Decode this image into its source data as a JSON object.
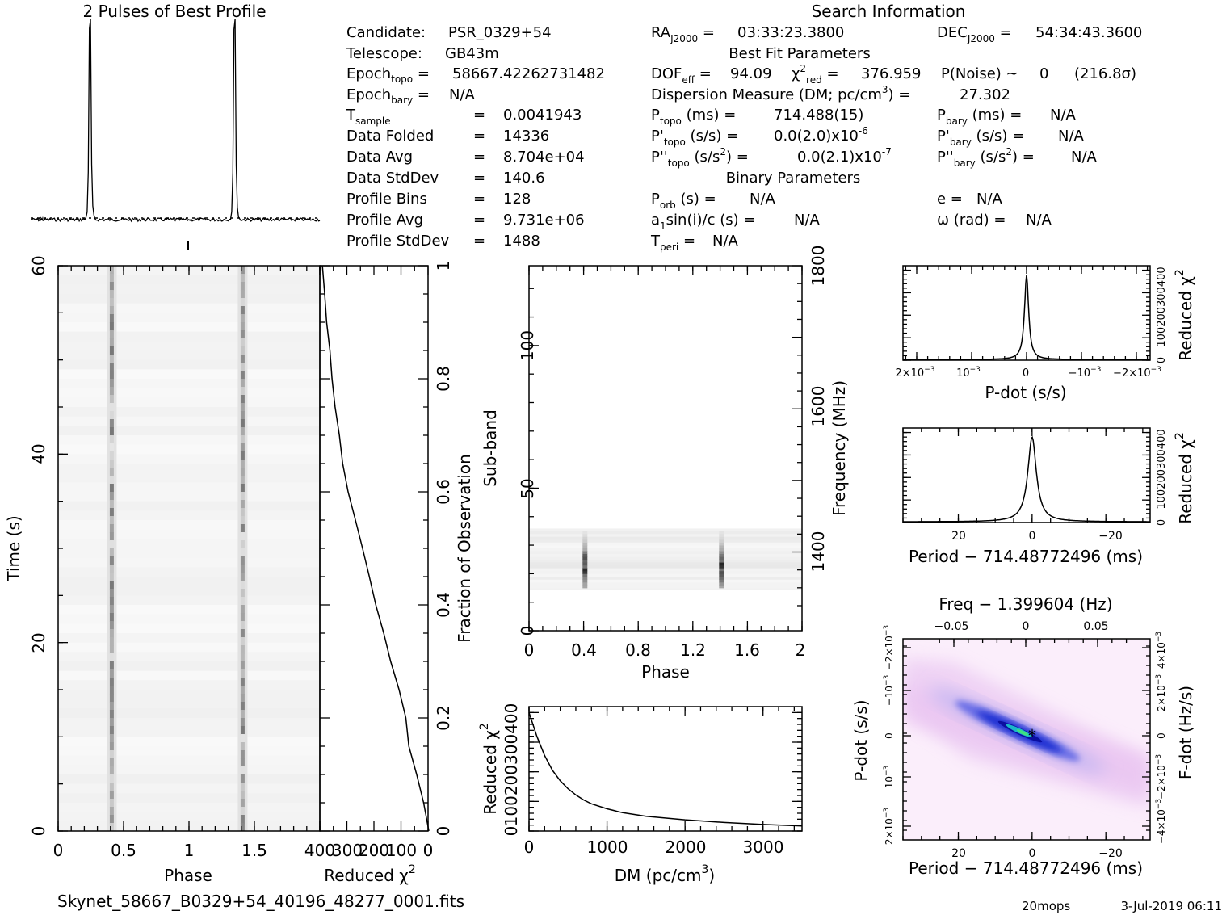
{
  "title_profile": "2 Pulses of Best Profile",
  "title_search": "Search Information",
  "info": {
    "candidate": "PSR_0329+54",
    "telescope": "GB43m",
    "epoch_topo": "58667.42262731482",
    "epoch_bary": "N/A",
    "t_sample": "0.0041943",
    "data_folded": "14336",
    "data_avg": "8.704e+04",
    "data_stddev": "140.6",
    "profile_bins": "128",
    "profile_avg": "9.731e+06",
    "profile_stddev": "1488",
    "ra": "03:33:23.3800",
    "dec": "54:34:43.3600",
    "best_fit_title": "Best Fit Parameters",
    "dof_eff": "94.09",
    "chi2_red": "376.959",
    "p_noise": "0",
    "sigma": "(216.8σ)",
    "dm": "27.302",
    "p_topo": "714.488(15)",
    "p_bary": "N/A",
    "pdot_topo": "0.0(2.0)",
    "pdot_topo_exp": "-6",
    "pdot_bary": "N/A",
    "pddot_topo": "0.0(2.1)",
    "pddot_topo_exp": "-7",
    "pddot_bary": "N/A",
    "binary_title": "Binary Parameters",
    "p_orb": "N/A",
    "a1sini": "N/A",
    "t_peri": "N/A",
    "e": "N/A",
    "omega": "N/A"
  },
  "footer": {
    "filename": "Skynet_58667_B0329+54_40196_48277_0001.fits",
    "user": "20mops",
    "date": "3-Jul-2019 06:11"
  },
  "chart_data": [
    {
      "id": "profile",
      "type": "line",
      "title": "2 Pulses of Best Profile",
      "x_range": [
        0,
        2
      ],
      "peaks": [
        0.41,
        1.41
      ],
      "note": "pulse profile repeated twice, sharp peak near phase 0.41"
    },
    {
      "id": "time_phase",
      "type": "heatmap",
      "xlabel": "Phase",
      "ylabel": "Time (s)",
      "x_ticks": [
        "0",
        "0.5",
        "1",
        "1.5"
      ],
      "y_ticks": [
        "0",
        "20",
        "40",
        "60"
      ],
      "xlim": [
        0,
        2
      ],
      "ylim": [
        0,
        60
      ],
      "pulse_phase": [
        0.41,
        1.41
      ]
    },
    {
      "id": "chi2_vs_time",
      "type": "line",
      "xlabel": "Reduced χ",
      "x_ticks": [
        "400",
        "300",
        "200",
        "100",
        "0"
      ],
      "xlim": [
        400,
        0
      ],
      "right_label": "Fraction of Observation",
      "right_ticks": [
        "0.2",
        "0.4",
        "0.6",
        "0.8",
        "1"
      ],
      "points": [
        [
          0,
          0.0
        ],
        [
          15,
          0.05
        ],
        [
          40,
          0.1
        ],
        [
          70,
          0.15
        ],
        [
          85,
          0.2
        ],
        [
          110,
          0.25
        ],
        [
          140,
          0.3
        ],
        [
          165,
          0.35
        ],
        [
          190,
          0.4
        ],
        [
          220,
          0.45
        ],
        [
          245,
          0.5
        ],
        [
          270,
          0.55
        ],
        [
          295,
          0.6
        ],
        [
          315,
          0.65
        ],
        [
          330,
          0.7
        ],
        [
          345,
          0.75
        ],
        [
          355,
          0.8
        ],
        [
          365,
          0.85
        ],
        [
          375,
          0.9
        ],
        [
          385,
          0.95
        ],
        [
          390,
          1.0
        ]
      ]
    },
    {
      "id": "subband_phase",
      "type": "heatmap",
      "xlabel": "Phase",
      "ylabel": "Sub-band",
      "right_label": "Frequency (MHz)",
      "x_ticks": [
        "0",
        "0.4",
        "0.8",
        "1.2",
        "1.6",
        "2"
      ],
      "y_ticks": [
        "0",
        "50",
        "100"
      ],
      "right_ticks": [
        "1400",
        "1600",
        "1800"
      ],
      "xlim": [
        0,
        2
      ],
      "ylim": [
        0,
        128
      ],
      "active_subbands": [
        15,
        35
      ],
      "pulse_phase": [
        0.41,
        1.41
      ]
    },
    {
      "id": "chi2_vs_dm",
      "type": "line",
      "xlabel": "DM (pc/cm",
      "ylabel": "Reduced χ",
      "x_ticks": [
        "0",
        "1000",
        "2000",
        "3000"
      ],
      "y_ticks": [
        "0",
        "100",
        "200",
        "300",
        "400"
      ],
      "xlim": [
        0,
        3500
      ],
      "ylim": [
        0,
        420
      ],
      "points": [
        [
          0,
          400
        ],
        [
          100,
          320
        ],
        [
          200,
          255
        ],
        [
          300,
          205
        ],
        [
          400,
          170
        ],
        [
          500,
          143
        ],
        [
          600,
          122
        ],
        [
          700,
          105
        ],
        [
          800,
          92
        ],
        [
          1000,
          75
        ],
        [
          1200,
          62
        ],
        [
          1500,
          50
        ],
        [
          2000,
          38
        ],
        [
          2500,
          29
        ],
        [
          3000,
          22
        ],
        [
          3500,
          17
        ]
      ]
    },
    {
      "id": "chi2_vs_pdot",
      "type": "line",
      "xlabel": "P-dot (s/s)",
      "ylabel": "Reduced χ",
      "x_ticks": [
        "2×10",
        "10",
        "0",
        "−10",
        "−2×10"
      ],
      "y_ticks": [
        "0",
        "100",
        "200",
        "300",
        "400"
      ],
      "xlim": [
        0.00225,
        -0.00225
      ],
      "ylim": [
        0,
        420
      ],
      "peak": [
        0,
        376.959
      ]
    },
    {
      "id": "chi2_vs_period",
      "type": "line",
      "xlabel": "Period − 714.48772496 (ms)",
      "ylabel": "Reduced χ",
      "x_ticks": [
        "20",
        "0",
        "−20"
      ],
      "y_ticks": [
        "0",
        "100",
        "200",
        "300",
        "400"
      ],
      "xlim": [
        35,
        -32
      ],
      "ylim": [
        0,
        420
      ],
      "peak": [
        0,
        376.959
      ]
    },
    {
      "id": "ppdot_plane",
      "type": "heatmap",
      "title": "Freq − 1.399604 (Hz)",
      "xlabel": "Period − 714.48772496 (ms)",
      "ylabel": "P-dot (s/s)",
      "right_label": "F-dot (Hz/s)",
      "x_ticks": [
        "20",
        "0",
        "−20"
      ],
      "top_ticks": [
        "−0.05",
        "0",
        "0.05"
      ],
      "left_ticks": [
        "2×10",
        "10",
        "0",
        "−10",
        "−2×10"
      ],
      "right_ticks": [
        "−4×10",
        "−2×10",
        "0",
        "2×10",
        "4×10"
      ],
      "xlim": [
        35,
        -32
      ],
      "best": [
        0,
        0
      ]
    }
  ]
}
